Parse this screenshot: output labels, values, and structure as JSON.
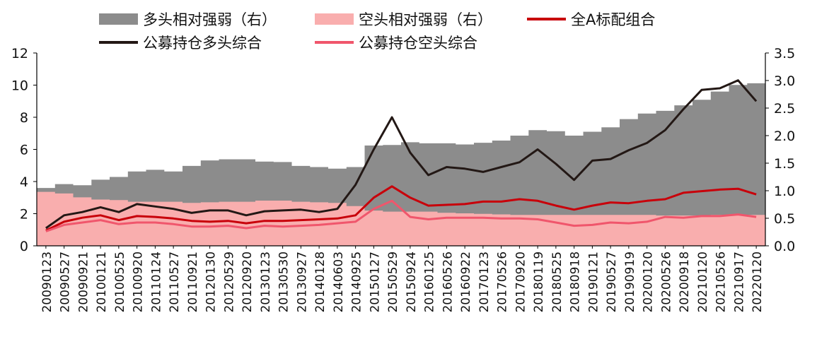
{
  "chart_data": {
    "type": "area",
    "categories": [
      "20090123",
      "20090527",
      "20090921",
      "20100121",
      "20100525",
      "20100920",
      "20110124",
      "20110527",
      "20110921",
      "20120130",
      "20120529",
      "20120920",
      "20130123",
      "20130530",
      "20130927",
      "20140128",
      "20140603",
      "20140925",
      "20150127",
      "20150529",
      "20150924",
      "20160125",
      "20160526",
      "20160922",
      "20170123",
      "20170526",
      "20170920",
      "20180119",
      "20180525",
      "20180918",
      "20190121",
      "20190527",
      "20190919",
      "20200120",
      "20200526",
      "20200918",
      "20210120",
      "20210526",
      "20210917",
      "20220120"
    ],
    "y_left": {
      "min": 0,
      "max": 12,
      "ticks": [
        "0",
        "2",
        "4",
        "6",
        "8",
        "10",
        "12"
      ]
    },
    "y_right": {
      "min": 0,
      "max": 3.5,
      "ticks": [
        "0.0",
        "0.5",
        "1.0",
        "1.5",
        "2.0",
        "2.5",
        "3.0",
        "3.5"
      ]
    },
    "series": [
      {
        "name": "多头相对强弱（右）",
        "kind": "area",
        "axis": "right",
        "color": "#8c8c8c",
        "values": [
          1.05,
          1.12,
          1.1,
          1.2,
          1.25,
          1.35,
          1.38,
          1.35,
          1.45,
          1.55,
          1.57,
          1.57,
          1.53,
          1.52,
          1.45,
          1.43,
          1.4,
          1.43,
          1.82,
          1.83,
          1.88,
          1.86,
          1.86,
          1.84,
          1.87,
          1.91,
          2.0,
          2.1,
          2.08,
          2.0,
          2.07,
          2.15,
          2.3,
          2.4,
          2.45,
          2.55,
          2.65,
          2.8,
          2.92,
          2.95
        ]
      },
      {
        "name": "空头相对强弱（右）",
        "kind": "area",
        "axis": "right",
        "color": "#f9aeae",
        "values": [
          0.98,
          0.95,
          0.88,
          0.84,
          0.83,
          0.8,
          0.8,
          0.8,
          0.78,
          0.79,
          0.8,
          0.8,
          0.82,
          0.82,
          0.8,
          0.79,
          0.78,
          0.72,
          0.64,
          0.62,
          0.62,
          0.62,
          0.6,
          0.59,
          0.58,
          0.57,
          0.56,
          0.56,
          0.56,
          0.56,
          0.56,
          0.56,
          0.56,
          0.56,
          0.55,
          0.55,
          0.55,
          0.56,
          0.56,
          0.56
        ]
      },
      {
        "name": "全A标配组合",
        "kind": "line",
        "axis": "left",
        "color": "#c8000a",
        "values": [
          0.95,
          1.5,
          1.75,
          1.9,
          1.6,
          1.85,
          1.8,
          1.7,
          1.55,
          1.5,
          1.55,
          1.4,
          1.55,
          1.55,
          1.6,
          1.65,
          1.7,
          1.9,
          3.0,
          3.7,
          3.0,
          2.5,
          2.55,
          2.6,
          2.75,
          2.75,
          2.9,
          2.8,
          2.5,
          2.25,
          2.5,
          2.7,
          2.65,
          2.8,
          2.9,
          3.3,
          3.4,
          3.5,
          3.55,
          3.2
        ]
      },
      {
        "name": "公募持仓多头综合",
        "kind": "line",
        "axis": "left",
        "color": "#231815",
        "values": [
          1.1,
          1.9,
          2.1,
          2.4,
          2.1,
          2.6,
          2.45,
          2.3,
          2.05,
          2.2,
          2.2,
          1.9,
          2.15,
          2.2,
          2.25,
          2.1,
          2.3,
          3.8,
          6.0,
          8.0,
          5.8,
          4.4,
          4.9,
          4.8,
          4.6,
          4.9,
          5.2,
          6.0,
          5.1,
          4.1,
          5.3,
          5.4,
          5.95,
          6.4,
          7.2,
          8.5,
          9.7,
          9.8,
          10.3,
          9.0
        ]
      },
      {
        "name": "公募持仓空头综合",
        "kind": "line",
        "axis": "left",
        "color": "#f0566c",
        "values": [
          0.9,
          1.3,
          1.45,
          1.6,
          1.35,
          1.45,
          1.45,
          1.35,
          1.2,
          1.2,
          1.25,
          1.1,
          1.25,
          1.2,
          1.25,
          1.3,
          1.4,
          1.5,
          2.3,
          2.8,
          1.8,
          1.65,
          1.75,
          1.75,
          1.75,
          1.7,
          1.7,
          1.65,
          1.45,
          1.25,
          1.3,
          1.45,
          1.4,
          1.5,
          1.8,
          1.75,
          1.85,
          1.85,
          1.95,
          1.8
        ]
      }
    ],
    "legend_position": "top",
    "grid": false
  }
}
